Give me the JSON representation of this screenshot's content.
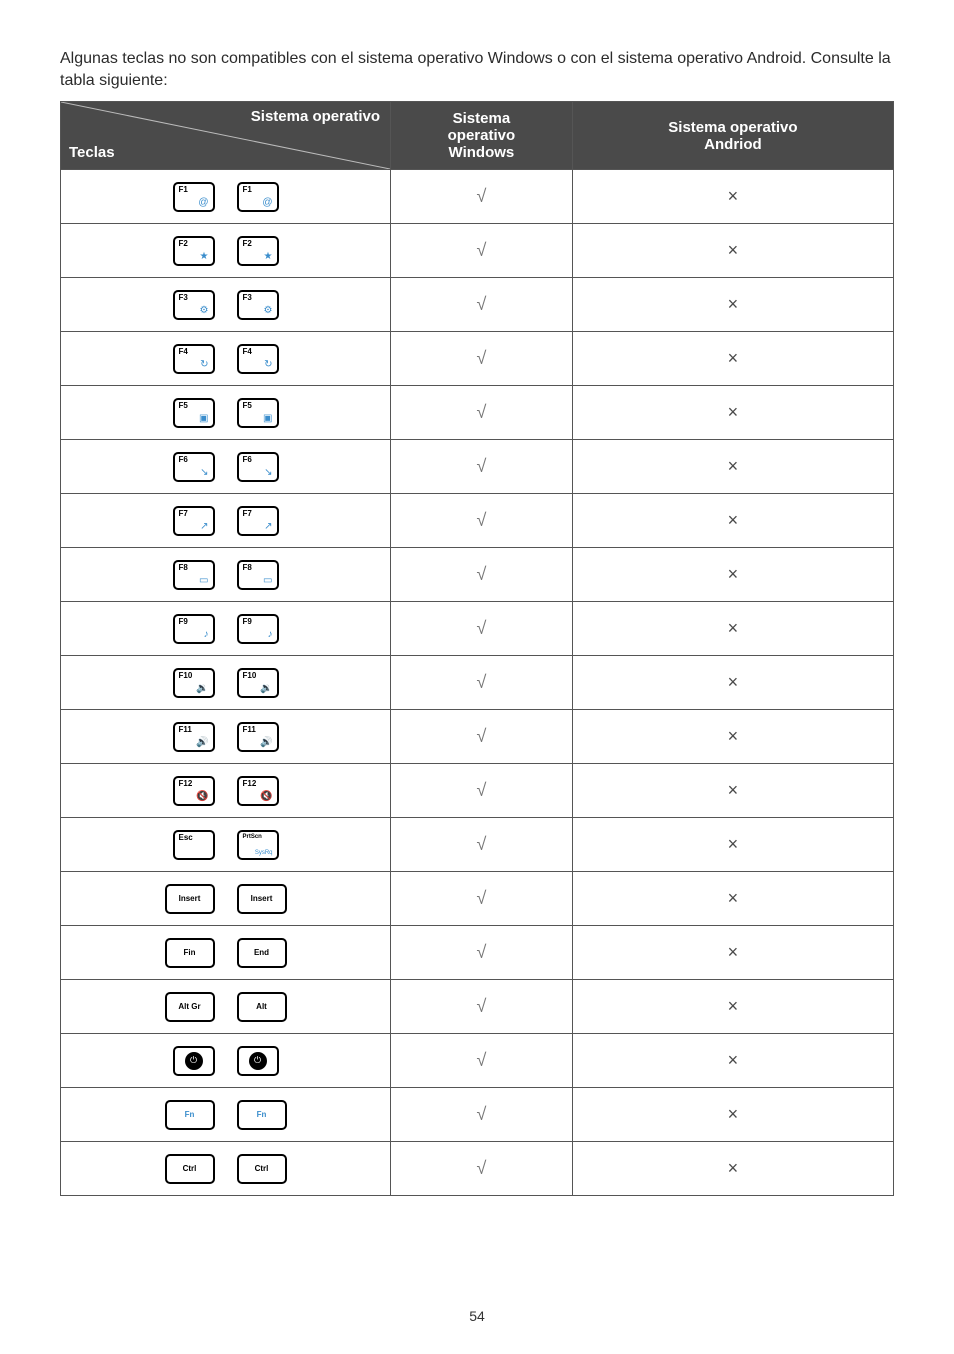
{
  "intro": "Algunas teclas no son compatibles con el sistema operativo Windows o con el sistema operativo Android. Consulte la tabla siguiente:",
  "header": {
    "diag_top": "Sistema operativo",
    "diag_bottom": "Teclas",
    "col_windows": "Sistema operativo Windows",
    "col_android": "Sistema operativo Andriod"
  },
  "rows": [
    {
      "variant": "fn",
      "top": "F1",
      "icon": "@",
      "win": "√",
      "android": "×"
    },
    {
      "variant": "fn",
      "top": "F2",
      "icon": "★",
      "win": "√",
      "android": "×"
    },
    {
      "variant": "fn",
      "top": "F3",
      "icon": "⚙",
      "win": "√",
      "android": "×"
    },
    {
      "variant": "fn",
      "top": "F4",
      "icon": "↻",
      "win": "√",
      "android": "×"
    },
    {
      "variant": "fn",
      "top": "F5",
      "icon": "▣",
      "win": "√",
      "android": "×"
    },
    {
      "variant": "fn",
      "top": "F6",
      "icon": "↘",
      "win": "√",
      "android": "×"
    },
    {
      "variant": "fn",
      "top": "F7",
      "icon": "↗",
      "win": "√",
      "android": "×"
    },
    {
      "variant": "fn",
      "top": "F8",
      "icon": "▭",
      "win": "√",
      "android": "×"
    },
    {
      "variant": "fn",
      "top": "F9",
      "icon": "♪",
      "win": "√",
      "android": "×"
    },
    {
      "variant": "fn",
      "top": "F10",
      "icon": "🔉",
      "win": "√",
      "android": "×"
    },
    {
      "variant": "fn",
      "top": "F11",
      "icon": "🔊",
      "win": "√",
      "android": "×"
    },
    {
      "variant": "fn",
      "top": "F12",
      "icon": "🔇",
      "win": "√",
      "android": "×"
    },
    {
      "variant": "mix",
      "left_top": "Esc",
      "left_icon": "",
      "right_top": "PrtScn",
      "right_icon": "SysRq",
      "win": "√",
      "android": "×"
    },
    {
      "variant": "pair_mid",
      "left": "Insert",
      "right": "Insert",
      "win": "√",
      "android": "×"
    },
    {
      "variant": "pair_mid",
      "left": "Fin",
      "right": "End",
      "win": "√",
      "android": "×"
    },
    {
      "variant": "pair_mid",
      "left": "Alt Gr",
      "right": "Alt",
      "win": "√",
      "android": "×"
    },
    {
      "variant": "circle",
      "win": "√",
      "android": "×"
    },
    {
      "variant": "pair_mid_blue",
      "left": "Fn",
      "right": "Fn",
      "win": "√",
      "android": "×"
    },
    {
      "variant": "pair_mid",
      "left": "Ctrl",
      "right": "Ctrl",
      "win": "√",
      "android": "×"
    }
  ],
  "page_number": "54"
}
